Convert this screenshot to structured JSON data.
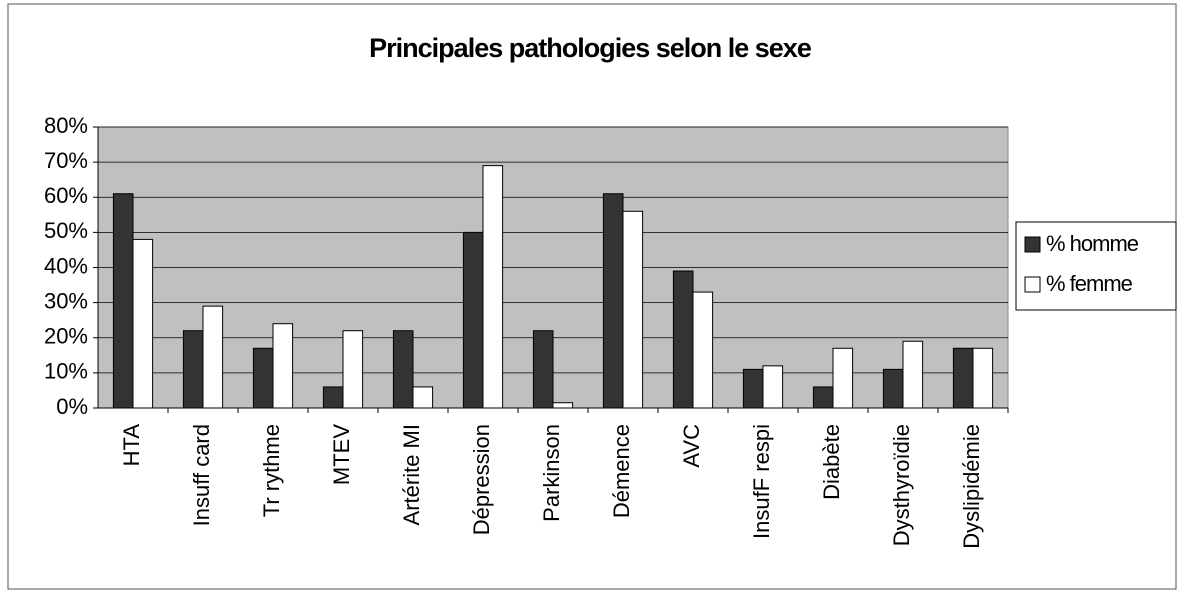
{
  "chart_data": {
    "type": "bar",
    "title": "Principales pathologies selon le sexe",
    "categories": [
      "HTA",
      "Insuff card",
      "Tr rythme",
      "MTEV",
      "Artérite MI",
      "Dépression",
      "Parkinson",
      "Démence",
      "AVC",
      "InsufF respi",
      "Diabète",
      "Dysthyroïdie",
      "Dyslipidémie"
    ],
    "series": [
      {
        "name": "% homme",
        "color": "#333333",
        "values": [
          61,
          22,
          17,
          6,
          22,
          50,
          22,
          61,
          39,
          11,
          6,
          11,
          17
        ]
      },
      {
        "name": "% femme",
        "color": "#ffffff",
        "values": [
          48,
          29,
          24,
          22,
          6,
          69,
          1.5,
          56,
          33,
          12,
          17,
          19,
          17
        ]
      }
    ],
    "ylim": [
      0,
      80
    ],
    "yticks": [
      {
        "value": 0,
        "label": "0%"
      },
      {
        "value": 10,
        "label": "10%"
      },
      {
        "value": 20,
        "label": "20%"
      },
      {
        "value": 30,
        "label": "30%"
      },
      {
        "value": 40,
        "label": "40%"
      },
      {
        "value": 50,
        "label": "50%"
      },
      {
        "value": 60,
        "label": "60%"
      },
      {
        "value": 70,
        "label": "70%"
      },
      {
        "value": 80,
        "label": "80%"
      }
    ],
    "grid": true,
    "legend": "right",
    "plot_background": "#c0c0c0"
  }
}
